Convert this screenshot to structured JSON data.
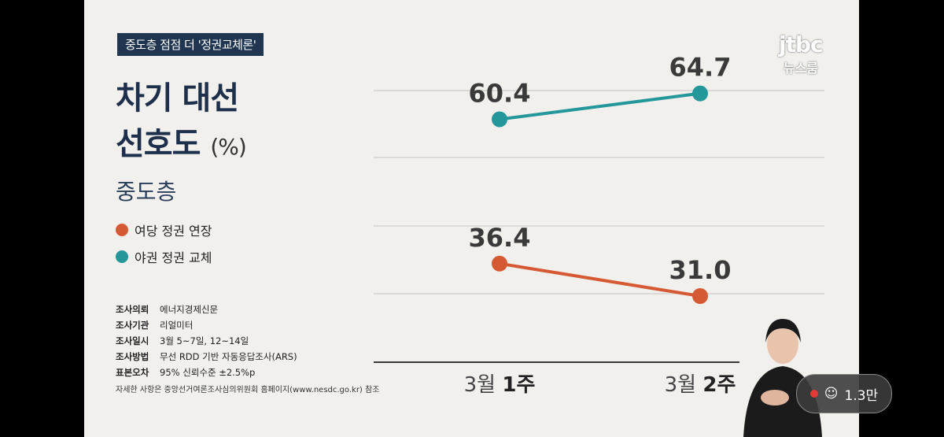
{
  "tag": "중도층 점점 더 '정권교체론'",
  "title": {
    "line1": "차기 대선",
    "line2": "선호도",
    "unit": "(%)"
  },
  "subtitle": "중도층",
  "legend": [
    {
      "label": "여당 정권 연장",
      "color": "#d55a33"
    },
    {
      "label": "야권 정권 교체",
      "color": "#23979a"
    }
  ],
  "meta": [
    {
      "key": "조사의뢰",
      "value": "에너지경제신문"
    },
    {
      "key": "조사기관",
      "value": "리얼미터"
    },
    {
      "key": "조사일시",
      "value": "3월 5~7일, 12~14일"
    },
    {
      "key": "조사방법",
      "value": "무선 RDD 기반 자동응답조사(ARS)"
    },
    {
      "key": "표본오차",
      "value": "95% 신뢰수준 ±2.5%p"
    }
  ],
  "footnote": "자세한 사항은 중앙선거여론조사심의위원회 홈페이지(www.nesdc.go.kr) 참조",
  "logo": {
    "line1": "jtbc",
    "line2": "뉴스룸"
  },
  "viewer_count": "1.3만",
  "chart_data": {
    "type": "line",
    "categories": [
      {
        "normal": "3월 ",
        "bold": "1주"
      },
      {
        "normal": "3월 ",
        "bold": "2주"
      }
    ],
    "series": [
      {
        "name": "야권 정권 교체",
        "values": [
          60.4,
          64.7
        ],
        "labels": [
          "60.4",
          "64.7"
        ],
        "color": "#23979a"
      },
      {
        "name": "여당 정권 연장",
        "values": [
          36.4,
          31.0
        ],
        "labels": [
          "36.4",
          "31.0"
        ],
        "color": "#d55a33"
      }
    ],
    "ylim": [
      20,
      75
    ],
    "grid": true
  }
}
